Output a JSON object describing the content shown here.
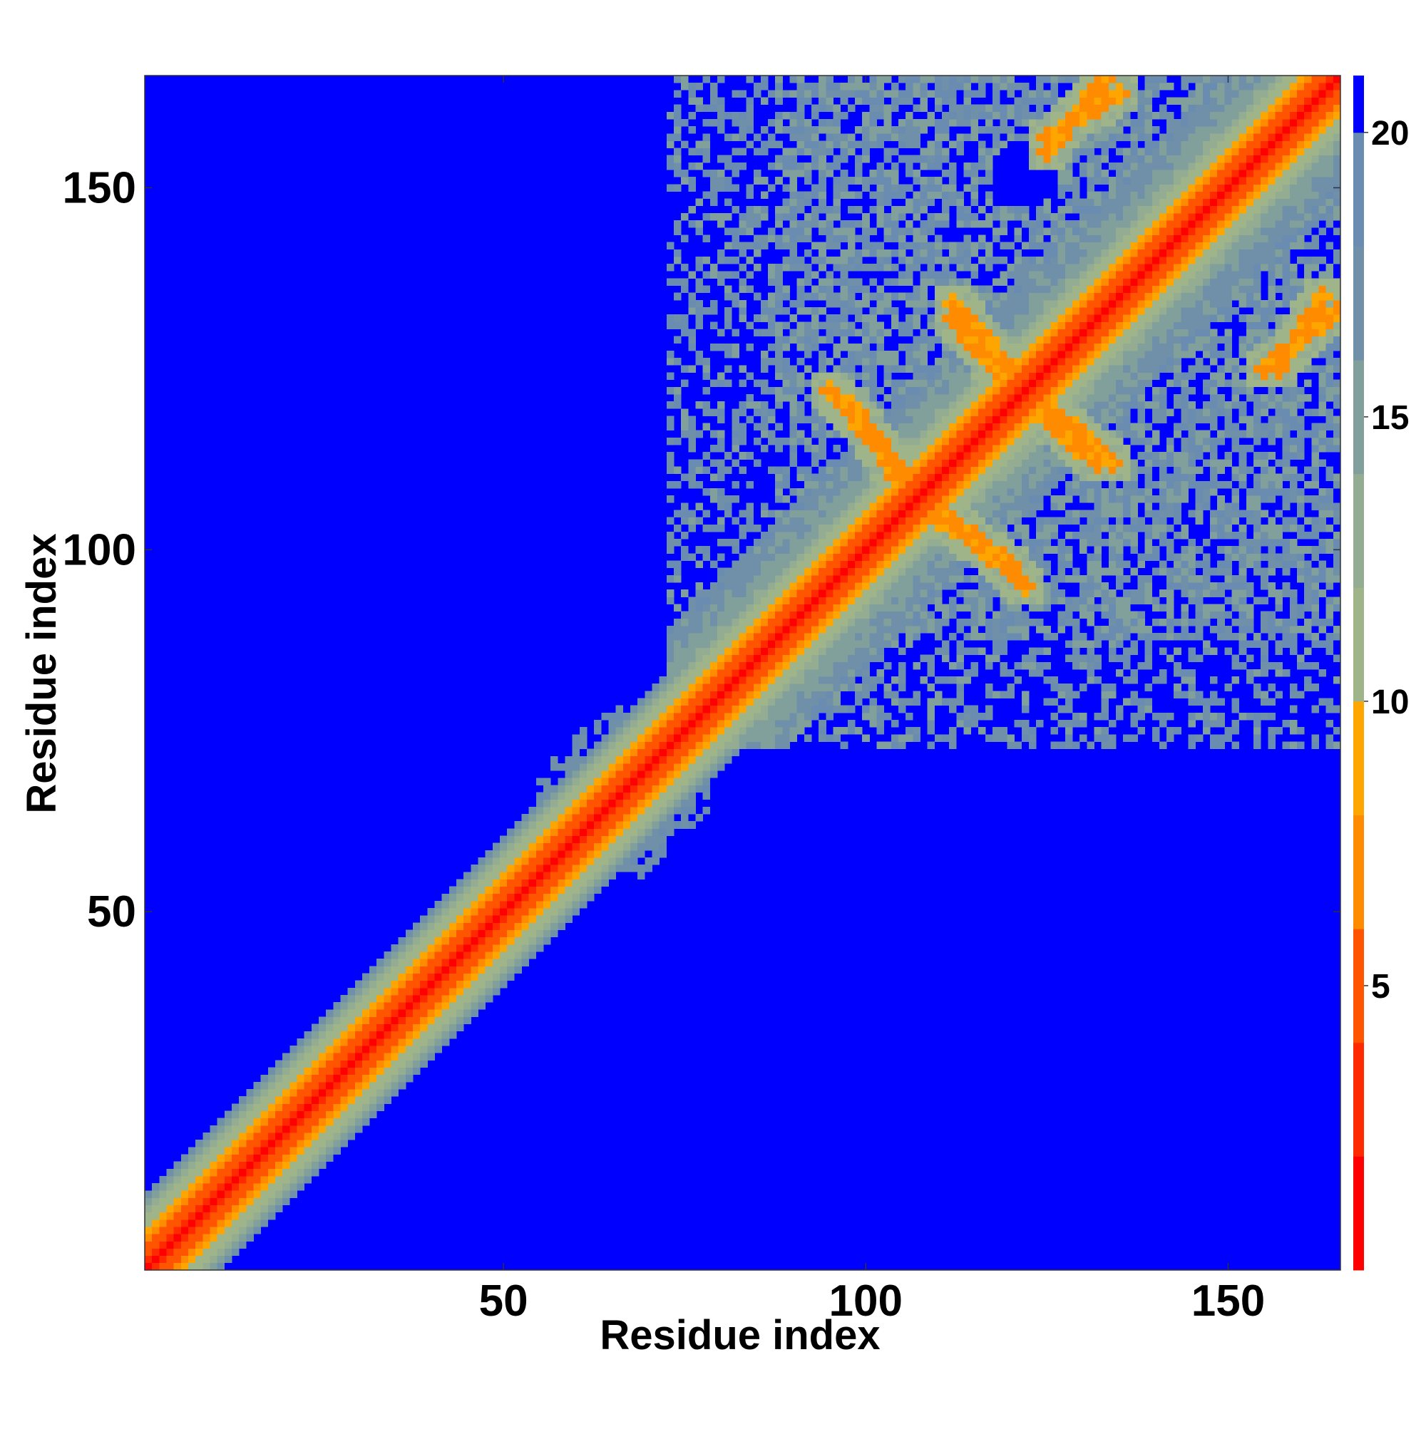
{
  "chart_data": {
    "type": "heatmap",
    "subtype": "residue contact / distance map",
    "title": "",
    "xlabel": "Residue index",
    "ylabel": "Residue index",
    "x_range": [
      1,
      165
    ],
    "y_range": [
      1,
      165
    ],
    "n_residues": 165,
    "xticks": [
      50,
      100,
      150
    ],
    "yticks": [
      50,
      100,
      150
    ],
    "grid": false,
    "colorbar": {
      "placement": "right",
      "range": [
        0,
        21
      ],
      "ticks": [
        5,
        10,
        15,
        20
      ],
      "tick_labels": [
        "5",
        "10",
        "15",
        "20"
      ],
      "levels": [
        {
          "from": 0,
          "to": 2,
          "color": "#ff0000"
        },
        {
          "from": 2,
          "to": 4,
          "color": "#ff2a00"
        },
        {
          "from": 4,
          "to": 6,
          "color": "#ff5500"
        },
        {
          "from": 6,
          "to": 8,
          "color": "#ff8c00"
        },
        {
          "from": 8,
          "to": 10,
          "color": "#ffa500"
        },
        {
          "from": 10,
          "to": 12,
          "color": "#9fb589"
        },
        {
          "from": 12,
          "to": 14,
          "color": "#94ac92"
        },
        {
          "from": 14,
          "to": 16,
          "color": "#82a09b"
        },
        {
          "from": 16,
          "to": 18,
          "color": "#6f90a8"
        },
        {
          "from": 18,
          "to": 20,
          "color": "#6a8cb1"
        },
        {
          "from": 20,
          "to": 21,
          "color": "#0000ff"
        }
      ]
    },
    "background_value_color": "#0000ff",
    "structure_description_values": {
      "diagonal_band_half_width_residues": 10,
      "contact_region_residue_range": [
        73,
        165
      ],
      "antiparallel_contact_features": [
        {
          "x": [
            95,
            106
          ],
          "y": [
            122,
            110
          ]
        },
        {
          "x": [
            112,
            120
          ],
          "y": [
            134,
            125
          ]
        },
        {
          "x": [
            109,
            120
          ],
          "y": [
            105,
            98
          ]
        },
        {
          "x": [
            125,
            132
          ],
          "y": [
            118,
            112
          ]
        },
        {
          "x": [
            125,
            135
          ],
          "y": [
            157,
            163
          ]
        },
        {
          "x": [
            155,
            165
          ],
          "y": [
            125,
            133
          ]
        }
      ]
    }
  }
}
